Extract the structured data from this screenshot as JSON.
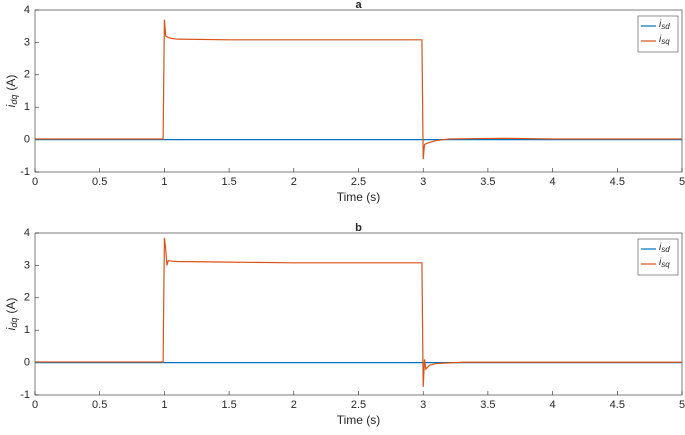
{
  "chart_data": [
    {
      "type": "line",
      "title": "a",
      "xlabel": "Time (s)",
      "ylabel": "i",
      "ylabel_sub": "dq",
      "ylabel_unit": "(A)",
      "x": [
        0,
        0.99,
        1.0,
        1.01,
        1.03,
        1.06,
        1.1,
        1.5,
        2.0,
        2.5,
        2.99,
        3.0,
        3.01,
        3.04,
        3.1,
        3.2,
        3.6,
        4.0,
        5.0
      ],
      "series": [
        {
          "name": "i",
          "name_sub": "sd",
          "color": "#0072BD",
          "values": [
            0,
            0,
            0,
            0,
            0,
            0,
            0,
            0,
            0,
            0,
            0,
            0,
            0,
            0,
            0,
            0,
            0,
            0,
            0
          ]
        },
        {
          "name": "i",
          "name_sub": "sq",
          "color": "#D95319",
          "values": [
            0.02,
            0.02,
            3.7,
            3.2,
            3.15,
            3.12,
            3.1,
            3.08,
            3.08,
            3.08,
            3.08,
            -0.6,
            -0.15,
            -0.1,
            -0.03,
            0.02,
            0.04,
            0.02,
            0.02
          ]
        }
      ],
      "xlim": [
        0,
        5
      ],
      "ylim": [
        -1,
        4
      ],
      "xticks": [
        0,
        0.5,
        1,
        1.5,
        2,
        2.5,
        3,
        3.5,
        4,
        4.5,
        5
      ],
      "yticks": [
        -1,
        0,
        1,
        2,
        3,
        4
      ],
      "grid": false,
      "legend": "upper-right"
    },
    {
      "type": "line",
      "title": "b",
      "xlabel": "Time (s)",
      "ylabel": "i",
      "ylabel_sub": "dq",
      "ylabel_unit": "(A)",
      "x": [
        0,
        0.99,
        1.0,
        1.01,
        1.02,
        1.03,
        1.06,
        1.1,
        1.5,
        2.0,
        2.5,
        2.99,
        3.0,
        3.01,
        3.02,
        3.05,
        3.1,
        3.3,
        4.0,
        5.0
      ],
      "series": [
        {
          "name": "i",
          "name_sub": "sd",
          "color": "#0072BD",
          "values": [
            0,
            0,
            0,
            0,
            0,
            0,
            0,
            0,
            0,
            0,
            0,
            0,
            0,
            0,
            0,
            0,
            0,
            0,
            0,
            0
          ]
        },
        {
          "name": "i",
          "name_sub": "sq",
          "color": "#D95319",
          "values": [
            0.02,
            0.02,
            3.85,
            3.5,
            3.0,
            3.15,
            3.13,
            3.12,
            3.1,
            3.08,
            3.08,
            3.08,
            -0.75,
            0.1,
            -0.2,
            -0.08,
            -0.03,
            0.01,
            0.01,
            0.01
          ]
        }
      ],
      "xlim": [
        0,
        5
      ],
      "ylim": [
        -1,
        4
      ],
      "xticks": [
        0,
        0.5,
        1,
        1.5,
        2,
        2.5,
        3,
        3.5,
        4,
        4.5,
        5
      ],
      "yticks": [
        -1,
        0,
        1,
        2,
        3,
        4
      ],
      "grid": false,
      "legend": "upper-right"
    }
  ]
}
